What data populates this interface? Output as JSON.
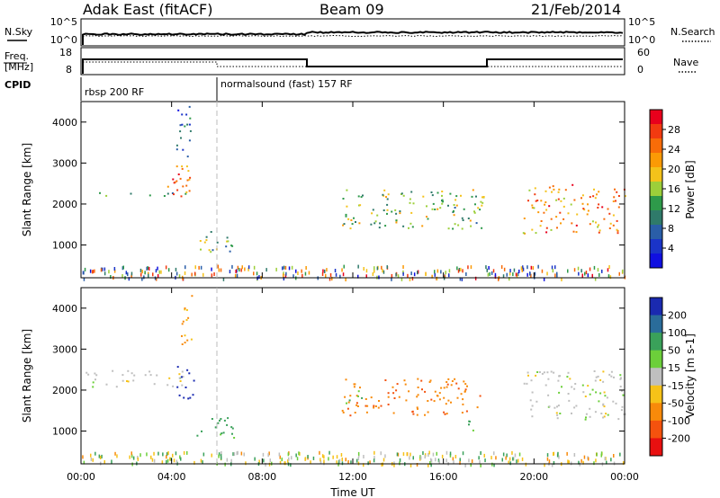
{
  "header": {
    "station": "Adak East (fitACF)",
    "beam": "Beam 09",
    "date": "21/Feb/2014"
  },
  "nsky_panel": {
    "left_label": "N.Sky",
    "right_label": "N.Search",
    "left_ticks": [
      "10^5",
      "10^0"
    ],
    "right_ticks": [
      "10^5",
      "10^0"
    ]
  },
  "freq_panel": {
    "left_label_line1": "Freq.",
    "left_label_line2": "[MHz]",
    "left_ticks": [
      "18",
      "8"
    ],
    "right_label": "Nave",
    "right_ticks": [
      "60",
      "0"
    ]
  },
  "cpid": {
    "label": "CPID",
    "segments": [
      "rbsp 200 RF",
      "normalsound (fast) 157 RF"
    ]
  },
  "power_colorbar": {
    "label": "Power [dB]",
    "ticks": [
      "28",
      "24",
      "20",
      "16",
      "12",
      "8",
      "4"
    ],
    "colors": [
      "#e8001c",
      "#f23a10",
      "#f86c08",
      "#fb9a05",
      "#f4c21a",
      "#9ccf3a",
      "#2e9a4a",
      "#2f7a6a",
      "#2a5ea8",
      "#1a34c8",
      "#1010e0"
    ]
  },
  "velocity_colorbar": {
    "label": "Velocity [m s-1]",
    "ticks": [
      "200",
      "100",
      "50",
      "15",
      "-15",
      "-50",
      "-100",
      "-200"
    ],
    "colors": [
      "#1a2ab0",
      "#2a6c9a",
      "#3aa15a",
      "#6ccf3a",
      "#bfbfbf",
      "#f6c218",
      "#f88a0a",
      "#f4520e",
      "#e81010"
    ]
  },
  "chart_data": [
    {
      "type": "scatter",
      "name": "power",
      "xlabel": "Time UT",
      "ylabel": "Slant Range [km]",
      "x_ticks": [
        "00:00",
        "04:00",
        "08:00",
        "12:00",
        "16:00",
        "20:00",
        "00:00"
      ],
      "y_ticks": [
        "4000",
        "3000",
        "2000",
        "1000"
      ],
      "xlim": [
        0,
        24
      ],
      "ylim": [
        200,
        4500
      ],
      "scatter_regions": [
        {
          "t_start": 0.0,
          "t_end": 4.6,
          "range_start_km": 2200,
          "range_end_km": 2300,
          "power_db": 10
        },
        {
          "t_start": 3.8,
          "t_end": 4.8,
          "range_start_km": 2100,
          "range_end_km": 3300,
          "power_db": 24
        },
        {
          "t_start": 4.2,
          "t_end": 4.9,
          "range_start_km": 3000,
          "range_end_km": 4400,
          "power_db": 6
        },
        {
          "t_start": 5.0,
          "t_end": 7.0,
          "range_start_km": 850,
          "range_end_km": 1350,
          "power_db": 12
        },
        {
          "t_start": 11.5,
          "t_end": 17.8,
          "range_start_km": 1400,
          "range_end_km": 2400,
          "power_db": 14
        },
        {
          "t_start": 19.5,
          "t_end": 24.0,
          "range_start_km": 1300,
          "range_end_km": 2500,
          "power_db": 22
        }
      ],
      "cpid_change_time": 5.9
    },
    {
      "type": "scatter",
      "name": "velocity",
      "xlabel": "Time UT",
      "ylabel": "Slant Range [km]",
      "x_ticks": [
        "00:00",
        "04:00",
        "08:00",
        "12:00",
        "16:00",
        "20:00",
        "00:00"
      ],
      "y_ticks": [
        "4000",
        "3000",
        "2000",
        "1000"
      ],
      "xlim": [
        0,
        24
      ],
      "ylim": [
        200,
        4500
      ],
      "scatter_regions": [
        {
          "t_start": 0.0,
          "t_end": 4.6,
          "range_start_km": 2100,
          "range_end_km": 2500,
          "velocity_ms": 0
        },
        {
          "t_start": 4.2,
          "t_end": 5.0,
          "range_start_km": 1800,
          "range_end_km": 2600,
          "velocity_ms": 200
        },
        {
          "t_start": 4.4,
          "t_end": 4.9,
          "range_start_km": 2900,
          "range_end_km": 4400,
          "velocity_ms": -50
        },
        {
          "t_start": 5.0,
          "t_end": 7.0,
          "range_start_km": 850,
          "range_end_km": 1350,
          "velocity_ms": 40
        },
        {
          "t_start": 11.5,
          "t_end": 17.6,
          "range_start_km": 1400,
          "range_end_km": 2300,
          "velocity_ms": -90
        },
        {
          "t_start": 11.5,
          "t_end": 12.5,
          "range_start_km": 1700,
          "range_end_km": 2000,
          "velocity_ms": 40
        },
        {
          "t_start": 17.0,
          "t_end": 17.8,
          "range_start_km": 1000,
          "range_end_km": 1300,
          "velocity_ms": 40
        },
        {
          "t_start": 19.5,
          "t_end": 24.0,
          "range_start_km": 1300,
          "range_end_km": 2500,
          "velocity_ms": 0
        }
      ],
      "cpid_change_time": 5.9
    }
  ]
}
